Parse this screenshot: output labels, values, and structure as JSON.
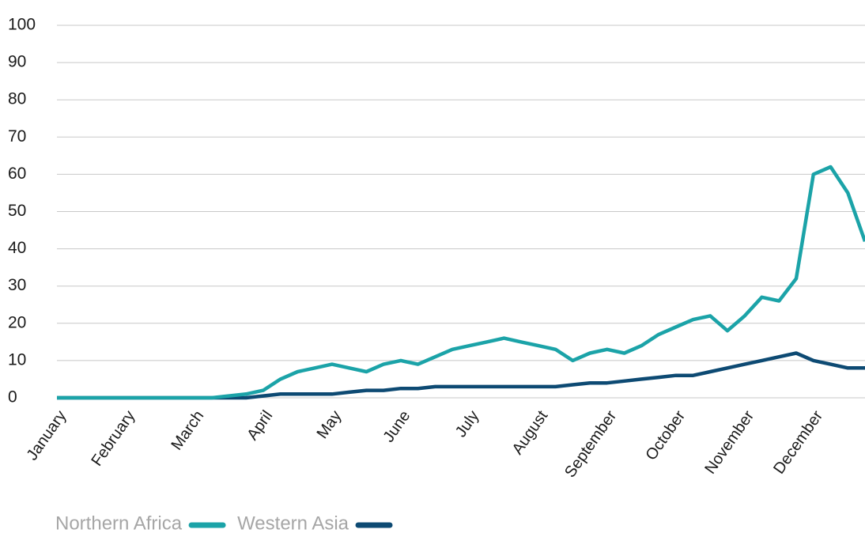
{
  "chart_data": {
    "type": "line",
    "categories": [
      "January",
      null,
      null,
      null,
      "February",
      null,
      null,
      null,
      "March",
      null,
      null,
      null,
      "April",
      null,
      null,
      null,
      "May",
      null,
      null,
      null,
      "June",
      null,
      null,
      null,
      "July",
      null,
      null,
      null,
      "August",
      null,
      null,
      null,
      "September",
      null,
      null,
      null,
      "October",
      null,
      null,
      null,
      "November",
      null,
      null,
      null,
      "December",
      null,
      null,
      null
    ],
    "series": [
      {
        "name": "Northern Africa",
        "color": "#1ba3a8",
        "values": [
          0,
          0,
          0,
          0,
          0,
          0,
          0,
          0,
          0,
          0,
          0.5,
          1,
          2,
          5,
          7,
          8,
          9,
          8,
          7,
          9,
          10,
          9,
          11,
          13,
          14,
          15,
          16,
          15,
          14,
          13,
          10,
          12,
          13,
          12,
          14,
          17,
          19,
          21,
          22,
          18,
          22,
          27,
          26,
          32,
          60,
          62,
          55,
          42
        ]
      },
      {
        "name": "Western Asia",
        "color": "#0d4a73",
        "values": [
          0,
          0,
          0,
          0,
          0,
          0,
          0,
          0,
          0,
          0,
          0,
          0,
          0.5,
          1,
          1,
          1,
          1,
          1.5,
          2,
          2,
          2.5,
          2.5,
          3,
          3,
          3,
          3,
          3,
          3,
          3,
          3,
          3.5,
          4,
          4,
          4.5,
          5,
          5.5,
          6,
          6,
          7,
          8,
          9,
          10,
          11,
          12,
          10,
          9,
          8,
          8
        ]
      }
    ],
    "ylim": [
      0,
      100
    ],
    "yticks": [
      0,
      10,
      20,
      30,
      40,
      50,
      60,
      70,
      80,
      90,
      100
    ],
    "grid": true,
    "legend": "bottom-left"
  }
}
